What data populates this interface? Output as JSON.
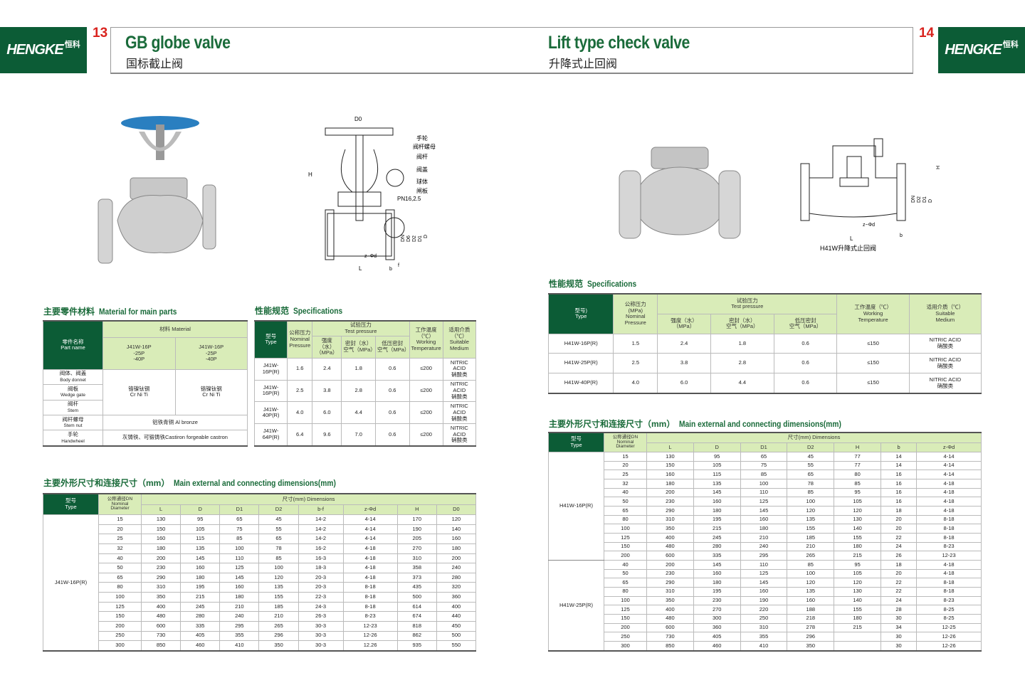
{
  "brand": {
    "name": "HENGKE",
    "cn": "恒科"
  },
  "left_page": {
    "number": "13",
    "title": "GB globe valve",
    "subtitle": "国标截止阀",
    "diagram_labels": {
      "D0": "D0",
      "H": "H",
      "L": "L",
      "b": "b",
      "f": "f",
      "zd": "z−Φd",
      "parts": [
        "手轮",
        "阀杆螺母",
        "阀杆",
        "阀盖",
        "球体",
        "闸板"
      ],
      "pn": "PN16,2.5",
      "dims": [
        "DN",
        "D6",
        "D2",
        "D1",
        "D"
      ]
    },
    "materials": {
      "heading_cn": "主要零件材料",
      "heading_en": "Material for main parts",
      "col_part": "零件名称",
      "col_part_en": "Part name",
      "col_material": "材料 Material",
      "models": [
        "J41W-16P\n-25P\n-40P",
        "J41W-16P\n-25P\n-40P"
      ],
      "parts": [
        {
          "cn": "阀体、阀盖",
          "en": "Body donnet"
        },
        {
          "cn": "阀板",
          "en": "Wedge gate"
        },
        {
          "cn": "阀杆",
          "en": "Stem"
        },
        {
          "cn": "阀杆螺母",
          "en": "Stem nut"
        },
        {
          "cn": "手轮",
          "en": "Handwheel"
        }
      ],
      "crniti_cn": "铬镍钛钢",
      "crniti_en": "Cr Ni Ti",
      "stem_nut": "铝铁青铜 Al bronze",
      "handwheel": "灰铸铁、可锻铸铁Castiron forgeable castron"
    },
    "specs": {
      "heading_cn": "性能规范",
      "heading_en": "Specifications",
      "headers": {
        "type": "型号\nType",
        "nominal": "公称压力\nNominal\nPressure",
        "test": "试验压力\nTest pressure",
        "strength": "强度（水）\n（MPa）",
        "seal": "密封（水）\n空气（MPa）",
        "low": "低压密封\n空气（MPa）",
        "temp": "工作温度\n（℃）\nWorking\nTemperature",
        "medium": "适用介质\n（℃）\nSuitable\nMedium"
      },
      "rows": [
        [
          "J41W-16P(R)",
          "1.6",
          "2.4",
          "1.8",
          "0.6",
          "≤200",
          "NITRIC ACID\n硝酸类"
        ],
        [
          "J41W-16P(R)",
          "2.5",
          "3.8",
          "2.8",
          "0.6",
          "≤200",
          "NITRIC ACID\n硝酸类"
        ],
        [
          "J41W-40P(R)",
          "4.0",
          "6.0",
          "4.4",
          "0.6",
          "≤200",
          "NITRIC ACID\n硝酸类"
        ],
        [
          "J41W-64P(R)",
          "6.4",
          "9.6",
          "7.0",
          "0.6",
          "≤200",
          "NITRIC ACID\n硝酸类"
        ]
      ]
    },
    "dims": {
      "heading_cn": "主要外形尺寸和连接尺寸（mm）",
      "heading_en": "Main external and connecting dimensions(mm)",
      "type_header": "型号\nType",
      "dn_header": "公称通径DN\nNominal\nDiameter",
      "dims_header": "尺寸(mm) Dimensions",
      "columns": [
        "L",
        "D",
        "D1",
        "D2",
        "b-f",
        "z-Φd",
        "H",
        "D0"
      ],
      "groups": [
        {
          "type": "J41W-16P(R)",
          "rows": [
            [
              "15",
              "130",
              "95",
              "65",
              "45",
              "14-2",
              "4-14",
              "170",
              "120"
            ],
            [
              "20",
              "150",
              "105",
              "75",
              "55",
              "14-2",
              "4-14",
              "190",
              "140"
            ],
            [
              "25",
              "160",
              "115",
              "85",
              "65",
              "14-2",
              "4-14",
              "205",
              "160"
            ],
            [
              "32",
              "180",
              "135",
              "100",
              "78",
              "16-2",
              "4-18",
              "270",
              "180"
            ],
            [
              "40",
              "200",
              "145",
              "110",
              "85",
              "16-3",
              "4-18",
              "310",
              "200"
            ],
            [
              "50",
              "230",
              "160",
              "125",
              "100",
              "18-3",
              "4-18",
              "358",
              "240"
            ],
            [
              "65",
              "290",
              "180",
              "145",
              "120",
              "20-3",
              "4-18",
              "373",
              "280"
            ],
            [
              "80",
              "310",
              "195",
              "160",
              "135",
              "20-3",
              "8-18",
              "435",
              "320"
            ],
            [
              "100",
              "350",
              "215",
              "180",
              "155",
              "22-3",
              "8-18",
              "500",
              "360"
            ],
            [
              "125",
              "400",
              "245",
              "210",
              "185",
              "24-3",
              "8-18",
              "614",
              "400"
            ],
            [
              "150",
              "480",
              "280",
              "240",
              "210",
              "26-3",
              "8-23",
              "674",
              "440"
            ],
            [
              "200",
              "600",
              "335",
              "295",
              "265",
              "30-3",
              "12-23",
              "818",
              "450"
            ],
            [
              "250",
              "730",
              "405",
              "355",
              "296",
              "30-3",
              "12-26",
              "862",
              "500"
            ],
            [
              "300",
              "850",
              "460",
              "410",
              "350",
              "30-3",
              "12.26",
              "935",
              "550"
            ]
          ]
        }
      ]
    }
  },
  "right_page": {
    "number": "14",
    "title": "Lift type check valve",
    "subtitle": "升降式止回阀",
    "diagram_labels": {
      "caption": "H41W升降式止回阀",
      "L": "L",
      "b": "b",
      "zd": "z−Φd",
      "H": "H",
      "dims": [
        "DN",
        "D2",
        "D1",
        "D"
      ]
    },
    "specs": {
      "heading_cn": "性能规范",
      "heading_en": "Specifications",
      "headers": {
        "type": "型号)\nType",
        "nominal": "公称压力\n(MPa)\nNominal\nPressure",
        "test": "试验压力\nTest pressure",
        "strength": "强度（水）\n（MPa）",
        "seal": "密封（水）\n空气（MPa）",
        "low": "低压密封\n空气（MPa）",
        "temp": "工作温度（℃）\nWorking\nTemperature",
        "medium": "适用介质（℃）\nSuitable\nMedium"
      },
      "rows": [
        [
          "H41W-16P(R)",
          "1.5",
          "2.4",
          "1.8",
          "0.6",
          "≤150",
          "NITRIC ACID\n硝酸类"
        ],
        [
          "H41W-25P(R)",
          "2.5",
          "3.8",
          "2.8",
          "0.6",
          "≤150",
          "NITRIC ACID\n硝酸类"
        ],
        [
          "H41W-40P(R)",
          "4.0",
          "6.0",
          "4.4",
          "0.6",
          "≤150",
          "NITRIC ACID\n硝酸类"
        ]
      ]
    },
    "dims": {
      "heading_cn": "主要外形尺寸和连接尺寸（mm）",
      "heading_en": "Main external and connecting dimensions(mm)",
      "type_header": "型号\nType",
      "dn_header": "公称通径DN\nNominal\nDiameter",
      "dims_header": "尺寸(mm) Dimensions",
      "columns": [
        "L",
        "D",
        "D1",
        "D2",
        "H",
        "b",
        "z-Φd"
      ],
      "groups": [
        {
          "type": "H41W-16P(R)",
          "rows": [
            [
              "15",
              "130",
              "95",
              "65",
              "45",
              "77",
              "14",
              "4-14"
            ],
            [
              "20",
              "150",
              "105",
              "75",
              "55",
              "77",
              "14",
              "4-14"
            ],
            [
              "25",
              "160",
              "115",
              "85",
              "65",
              "80",
              "16",
              "4-14"
            ],
            [
              "32",
              "180",
              "135",
              "100",
              "78",
              "85",
              "16",
              "4-18"
            ],
            [
              "40",
              "200",
              "145",
              "110",
              "85",
              "95",
              "16",
              "4-18"
            ],
            [
              "50",
              "230",
              "160",
              "125",
              "100",
              "105",
              "16",
              "4-18"
            ],
            [
              "65",
              "290",
              "180",
              "145",
              "120",
              "120",
              "18",
              "4-18"
            ],
            [
              "80",
              "310",
              "195",
              "160",
              "135",
              "130",
              "20",
              "8-18"
            ],
            [
              "100",
              "350",
              "215",
              "180",
              "155",
              "140",
              "20",
              "8-18"
            ],
            [
              "125",
              "400",
              "245",
              "210",
              "185",
              "155",
              "22",
              "8-18"
            ],
            [
              "150",
              "480",
              "280",
              "240",
              "210",
              "180",
              "24",
              "8-23"
            ],
            [
              "200",
              "600",
              "335",
              "295",
              "265",
              "215",
              "26",
              "12-23"
            ]
          ]
        },
        {
          "type": "H41W-25P(R)",
          "rows": [
            [
              "40",
              "200",
              "145",
              "110",
              "85",
              "95",
              "18",
              "4-18"
            ],
            [
              "50",
              "230",
              "160",
              "125",
              "100",
              "105",
              "20",
              "4-18"
            ],
            [
              "65",
              "290",
              "180",
              "145",
              "120",
              "120",
              "22",
              "8-18"
            ],
            [
              "80",
              "310",
              "195",
              "160",
              "135",
              "130",
              "22",
              "8-18"
            ],
            [
              "100",
              "350",
              "230",
              "190",
              "160",
              "140",
              "24",
              "8-23"
            ],
            [
              "125",
              "400",
              "270",
              "220",
              "188",
              "155",
              "28",
              "8-25"
            ],
            [
              "150",
              "480",
              "300",
              "250",
              "218",
              "180",
              "30",
              "8-25"
            ],
            [
              "200",
              "600",
              "360",
              "310",
              "278",
              "215",
              "34",
              "12-25"
            ],
            [
              "250",
              "730",
              "405",
              "355",
              "296",
              "",
              "30",
              "12-26"
            ],
            [
              "300",
              "850",
              "460",
              "410",
              "350",
              "",
              "30",
              "12-26"
            ]
          ]
        }
      ]
    }
  },
  "colors": {
    "brand_green": "#0c5c36",
    "header_green": "#d9ecb8",
    "title_green": "#1a6b3a",
    "page_number_red": "#d9231e",
    "handwheel_blue": "#2a7fc0"
  }
}
